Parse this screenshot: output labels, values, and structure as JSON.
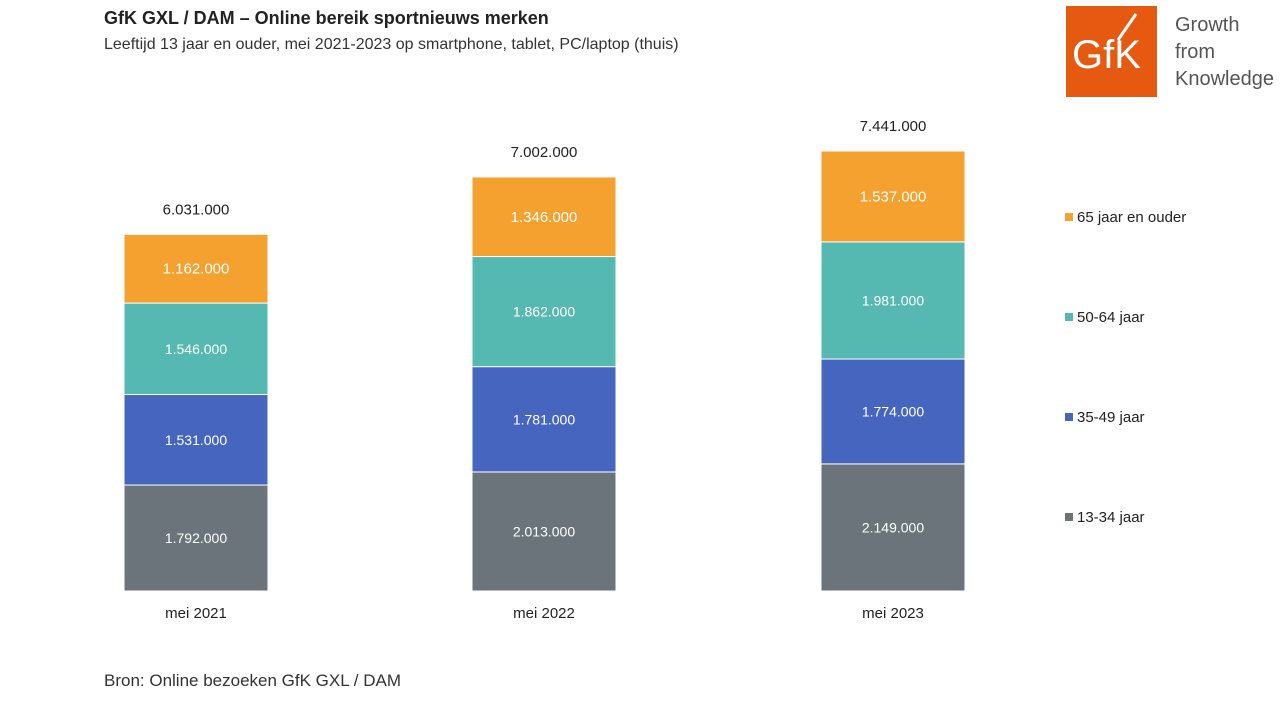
{
  "header": {
    "title": "GfK GXL / DAM – Online bereik sportnieuws merken",
    "subtitle": "Leeftijd 13 jaar en ouder, mei 2021-2023 op smartphone, tablet, PC/laptop (thuis)"
  },
  "logo": {
    "mark": "GfK",
    "tagline": [
      "Growth",
      "from",
      "Knowledge"
    ],
    "color": "#e55a10"
  },
  "source": "Bron: Online bezoeken GfK GXL / DAM",
  "chart_data": {
    "type": "bar",
    "stacked": true,
    "categories": [
      "mei 2021",
      "mei 2022",
      "mei 2023"
    ],
    "totals": [
      6031000,
      7002000,
      7441000
    ],
    "total_labels": [
      "6.031.000",
      "7.002.000",
      "7.441.000"
    ],
    "series": [
      {
        "name": "13-34 jaar",
        "color": "#6b747a",
        "values": [
          1792000,
          2013000,
          2149000
        ],
        "labels": [
          "1.792.000",
          "2.013.000",
          "2.149.000"
        ]
      },
      {
        "name": "35-49 jaar",
        "color": "#4565bf",
        "values": [
          1531000,
          1781000,
          1774000
        ],
        "labels": [
          "1.531.000",
          "1.781.000",
          "1.774.000"
        ]
      },
      {
        "name": "50-64 jaar",
        "color": "#55b8b1",
        "values": [
          1546000,
          1862000,
          1981000
        ],
        "labels": [
          "1.546.000",
          "1.862.000",
          "1.981.000"
        ]
      },
      {
        "name": "65 jaar en ouder",
        "color": "#f5a130",
        "values": [
          1162000,
          1346000,
          1537000
        ],
        "labels": [
          "1.162.000",
          "1.346.000",
          "1.537.000"
        ]
      }
    ],
    "legend_position": "right",
    "grid": false
  }
}
